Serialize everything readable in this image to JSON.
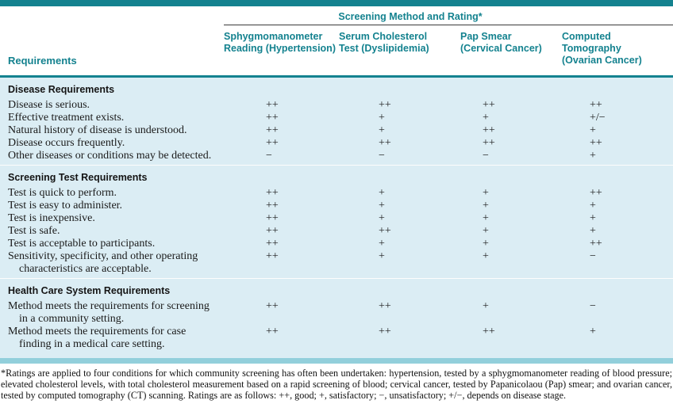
{
  "colors": {
    "teal": "#14828F",
    "light_blue": "#DBEDF4",
    "bottom_bar": "#92CFDB",
    "text": "#1A1A1A"
  },
  "table": {
    "spanner_header": "Screening Method and Rating*",
    "requirements_label": "Requirements",
    "method_columns": [
      {
        "line1": "Sphygmomanometer",
        "line2": "Reading (Hypertension)"
      },
      {
        "line1": "Serum Cholesterol",
        "line2": "Test (Dyslipidemia)"
      },
      {
        "line1": "Pap Smear",
        "line2": "(Cervical Cancer)"
      },
      {
        "line1": "Computed Tomography",
        "line2": "(Ovarian Cancer)"
      }
    ],
    "sections": [
      {
        "title": "Disease Requirements",
        "rows": [
          {
            "label": "Disease is serious.",
            "ratings": [
              "++",
              "++",
              "++",
              "++"
            ]
          },
          {
            "label": "Effective treatment exists.",
            "ratings": [
              "++",
              "+",
              "+",
              "+/−"
            ]
          },
          {
            "label": "Natural history of disease is understood.",
            "ratings": [
              "++",
              "+",
              "++",
              "+"
            ]
          },
          {
            "label": "Disease occurs frequently.",
            "ratings": [
              "++",
              "++",
              "++",
              "++"
            ]
          },
          {
            "label": "Other diseases or conditions may be detected.",
            "ratings": [
              "−",
              "−",
              "−",
              "+"
            ]
          }
        ]
      },
      {
        "title": "Screening Test Requirements",
        "rows": [
          {
            "label": "Test is quick to perform.",
            "ratings": [
              "++",
              "+",
              "+",
              "++"
            ]
          },
          {
            "label": "Test is easy to administer.",
            "ratings": [
              "++",
              "+",
              "+",
              "+"
            ]
          },
          {
            "label": "Test is inexpensive.",
            "ratings": [
              "++",
              "+",
              "+",
              "+"
            ]
          },
          {
            "label": "Test is safe.",
            "ratings": [
              "++",
              "++",
              "+",
              "+"
            ]
          },
          {
            "label": "Test is acceptable to participants.",
            "ratings": [
              "++",
              "+",
              "+",
              "++"
            ]
          },
          {
            "label": "Sensitivity, specificity, and other operating",
            "label2": "characteristics are acceptable.",
            "ratings": [
              "++",
              "+",
              "+",
              "−"
            ]
          }
        ]
      },
      {
        "title": "Health Care System Requirements",
        "rows": [
          {
            "label": "Method meets the requirements for screening",
            "label2": "in a community setting.",
            "ratings": [
              "++",
              "++",
              "+",
              "−"
            ]
          },
          {
            "label": "Method meets the requirements for case",
            "label2": "finding in a medical care setting.",
            "ratings": [
              "++",
              "++",
              "++",
              "+"
            ]
          }
        ]
      }
    ],
    "footnote": "*Ratings are applied to four conditions for which community screening has often been undertaken: hypertension, tested by a sphygmomanometer reading of blood pressure; elevated cholesterol levels, with total cholesterol measurement based on a rapid screening of blood; cervical cancer, tested by Papanicolaou (Pap) smear; and ovarian cancer, tested by computed tomography (CT) scanning. Ratings are as follows: ++, good; +, satisfactory; −, unsatisfactory; +/−, depends on disease stage."
  }
}
